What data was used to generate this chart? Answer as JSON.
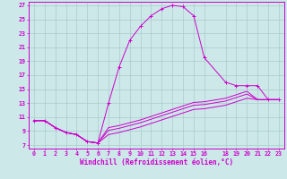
{
  "xlabel": "Windchill (Refroidissement éolien,°C)",
  "bg_color": "#cce8e8",
  "grid_color": "#aacccc",
  "line_color": "#cc00cc",
  "xlim": [
    -0.5,
    23.5
  ],
  "ylim": [
    6.5,
    27.5
  ],
  "xticks": [
    0,
    1,
    2,
    3,
    4,
    5,
    6,
    7,
    8,
    9,
    10,
    11,
    12,
    13,
    14,
    15,
    16,
    18,
    19,
    20,
    21,
    22,
    23
  ],
  "yticks": [
    7,
    9,
    11,
    13,
    15,
    17,
    19,
    21,
    23,
    25,
    27
  ],
  "line1_x": [
    0,
    1,
    2,
    3,
    4,
    5,
    6,
    7,
    8,
    9,
    10,
    11,
    12,
    13,
    14,
    15,
    16,
    18,
    19,
    20,
    21,
    22,
    23
  ],
  "line1_y": [
    10.5,
    10.5,
    9.5,
    8.8,
    8.5,
    7.5,
    7.3,
    13.0,
    18.2,
    22.0,
    24.0,
    25.5,
    26.5,
    27.0,
    26.8,
    25.5,
    19.5,
    16.0,
    15.5,
    15.5,
    15.5,
    13.5,
    13.5
  ],
  "line2_x": [
    0,
    1,
    2,
    3,
    4,
    5,
    6,
    7,
    8,
    9,
    10,
    11,
    12,
    13,
    14,
    15,
    16,
    18,
    19,
    20,
    21,
    22,
    23
  ],
  "line2_y": [
    10.5,
    10.5,
    9.5,
    8.8,
    8.5,
    7.5,
    7.3,
    9.5,
    9.8,
    10.2,
    10.6,
    11.1,
    11.6,
    12.1,
    12.6,
    13.1,
    13.2,
    13.7,
    14.2,
    14.7,
    13.5,
    13.5,
    13.5
  ],
  "line3_x": [
    0,
    1,
    2,
    3,
    4,
    5,
    6,
    7,
    8,
    9,
    10,
    11,
    12,
    13,
    14,
    15,
    16,
    18,
    19,
    20,
    21,
    22,
    23
  ],
  "line3_y": [
    10.5,
    10.5,
    9.5,
    8.8,
    8.5,
    7.5,
    7.3,
    9.1,
    9.4,
    9.8,
    10.2,
    10.7,
    11.2,
    11.7,
    12.2,
    12.7,
    12.8,
    13.3,
    13.8,
    14.3,
    13.5,
    13.5,
    13.5
  ],
  "line4_x": [
    0,
    1,
    2,
    3,
    4,
    5,
    6,
    7,
    8,
    9,
    10,
    11,
    12,
    13,
    14,
    15,
    16,
    18,
    19,
    20,
    21,
    22,
    23
  ],
  "line4_y": [
    10.5,
    10.5,
    9.5,
    8.8,
    8.5,
    7.5,
    7.3,
    8.5,
    8.8,
    9.2,
    9.6,
    10.1,
    10.6,
    11.1,
    11.6,
    12.1,
    12.2,
    12.7,
    13.2,
    13.7,
    13.5,
    13.5,
    13.5
  ],
  "tick_fontsize": 4.8,
  "label_fontsize": 5.5
}
